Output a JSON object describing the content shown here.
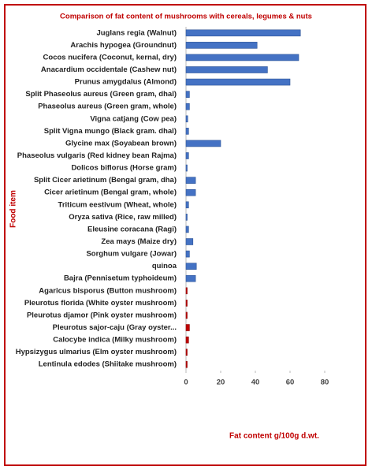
{
  "chart_data": {
    "type": "hbar",
    "title": "Comparison of fat content of mushrooms with cereals, legumes & nuts",
    "x_label": "Fat content g/100g d.wt.",
    "y_label": "Food item",
    "categories": [
      "Juglans regia (Walnut)",
      "Arachis hypogea (Groundnut)",
      "Cocos nucifera (Coconut, kernal, dry)",
      "Anacardium occidentale (Cashew nut)",
      "Prunus amygdalus (Almond)",
      "Split Phaseolus aureus (Green gram, dhal)",
      "Phaseolus aureus (Green gram, whole)",
      "Vigna catjang (Cow pea)",
      "Split Vigna mungo (Black gram. dhal)",
      "Glycine max (Soyabean brown)",
      "Phaseolus vulgaris (Red kidney bean Rajma)",
      "Dolicos biflorus (Horse gram)",
      "Split Cicer arietinum (Bengal gram, dha)",
      "Cicer arietinum (Bengal gram, whole)",
      "Triticum eestivum (Wheat, whole)",
      "Oryza sativa (Rice, raw milled)",
      "Eleusine coracana (Ragi)",
      "Zea mays (Maize dry)",
      "Sorghum vulgare (Jowar)",
      "quinoa",
      "Bajra (Pennisetum typhoideum)",
      "Agaricus bisporus (Button mushroom)",
      "Pleurotus florida (White oyster mushroom)",
      "Pleurotus djamor (Pink oyster mushroom)",
      "Pleurotus sajor-caju (Gray oyster...",
      "Calocybe indica (Milky mushroom)",
      "Hypsizygus ulmarius (Elm oyster mushroom)",
      "Lentinula edodes (Shiitake mushroom)"
    ],
    "values": [
      66,
      41,
      65,
      47,
      60,
      2,
      2,
      1,
      1.5,
      20,
      1.5,
      0.5,
      5.5,
      5.5,
      1.5,
      0.5,
      1.5,
      4,
      2,
      6,
      5.5,
      0.3,
      0.5,
      0.5,
      2,
      1.5,
      0.5,
      0.5
    ],
    "colors": [
      "#4472c4",
      "#4472c4",
      "#4472c4",
      "#4472c4",
      "#4472c4",
      "#4472c4",
      "#4472c4",
      "#4472c4",
      "#4472c4",
      "#4472c4",
      "#4472c4",
      "#4472c4",
      "#4472c4",
      "#4472c4",
      "#4472c4",
      "#4472c4",
      "#4472c4",
      "#4472c4",
      "#4472c4",
      "#4472c4",
      "#4472c4",
      "#c00000",
      "#c00000",
      "#c00000",
      "#c00000",
      "#c00000",
      "#c00000",
      "#c00000"
    ],
    "xlim": [
      0,
      100
    ],
    "xticks": [
      0,
      20,
      40,
      60,
      80
    ]
  }
}
